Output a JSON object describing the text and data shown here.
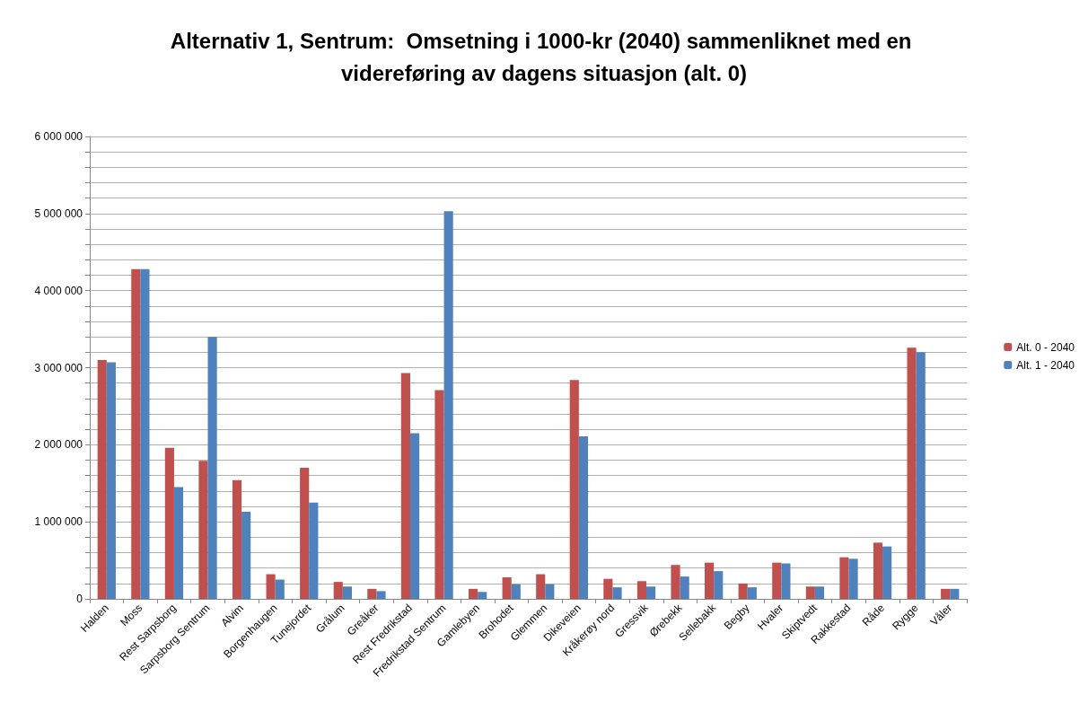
{
  "chart_data": {
    "type": "bar",
    "title": "Alternativ 1, Sentrum:  Omsetning i 1000-kr (2040) sammenliknet med en videreføring av dagens situasjon (alt. 0)",
    "categories": [
      "Halden",
      "Moss",
      "Rest Sarpsborg",
      "Sarpsborg Sentrum",
      "Alvim",
      "Borgenhaugen",
      "Tunejordet",
      "Grålum",
      "Greåker",
      "Rest Fredrikstad",
      "Fredrikstad Sentrum",
      "Gamlebyen",
      "Brohodet",
      "Glemmen",
      "Dikeveien",
      "Kråkerøy nord",
      "Gressvik",
      "Ørebekk",
      "Sellebakk",
      "Begby",
      "Hvaler",
      "Skiptvedt",
      "Rakkestad",
      "Råde",
      "Rygge",
      "Våler"
    ],
    "series": [
      {
        "name": "Alt. 0 - 2040",
        "color": "#c0504d",
        "values": [
          3100000,
          4280000,
          1960000,
          1790000,
          1540000,
          320000,
          1700000,
          220000,
          130000,
          2930000,
          2710000,
          130000,
          280000,
          320000,
          2840000,
          260000,
          230000,
          440000,
          470000,
          200000,
          470000,
          160000,
          540000,
          730000,
          3260000,
          130000
        ]
      },
      {
        "name": "Alt. 1 - 2040",
        "color": "#4f81bd",
        "values": [
          3070000,
          4280000,
          1450000,
          3400000,
          1130000,
          250000,
          1250000,
          160000,
          100000,
          2150000,
          5030000,
          90000,
          190000,
          190000,
          2110000,
          150000,
          160000,
          290000,
          360000,
          150000,
          460000,
          160000,
          520000,
          680000,
          3200000,
          130000
        ]
      }
    ],
    "ylim": [
      0,
      6000000
    ],
    "yticks": [
      {
        "value": 0,
        "label": "0"
      },
      {
        "value": 200000,
        "label": null
      },
      {
        "value": 400000,
        "label": null
      },
      {
        "value": 600000,
        "label": null
      },
      {
        "value": 800000,
        "label": null
      },
      {
        "value": 1000000,
        "label": "1 000 000"
      },
      {
        "value": 1200000,
        "label": null
      },
      {
        "value": 1400000,
        "label": null
      },
      {
        "value": 1600000,
        "label": null
      },
      {
        "value": 1800000,
        "label": null
      },
      {
        "value": 2000000,
        "label": "2 000 000"
      },
      {
        "value": 2200000,
        "label": null
      },
      {
        "value": 2400000,
        "label": null
      },
      {
        "value": 2600000,
        "label": null
      },
      {
        "value": 2800000,
        "label": null
      },
      {
        "value": 3000000,
        "label": "3 000 000"
      },
      {
        "value": 3200000,
        "label": null
      },
      {
        "value": 3400000,
        "label": null
      },
      {
        "value": 3600000,
        "label": null
      },
      {
        "value": 3800000,
        "label": null
      },
      {
        "value": 4000000,
        "label": "4 000 000"
      },
      {
        "value": 4200000,
        "label": null
      },
      {
        "value": 4400000,
        "label": null
      },
      {
        "value": 4600000,
        "label": null
      },
      {
        "value": 4800000,
        "label": null
      },
      {
        "value": 5000000,
        "label": "5 000 000"
      },
      {
        "value": 5200000,
        "label": null
      },
      {
        "value": 5400000,
        "label": null
      },
      {
        "value": 5600000,
        "label": null
      },
      {
        "value": 5800000,
        "label": null
      },
      {
        "value": 6000000,
        "label": "6 000 000"
      }
    ],
    "grid": true,
    "legend": "right"
  }
}
